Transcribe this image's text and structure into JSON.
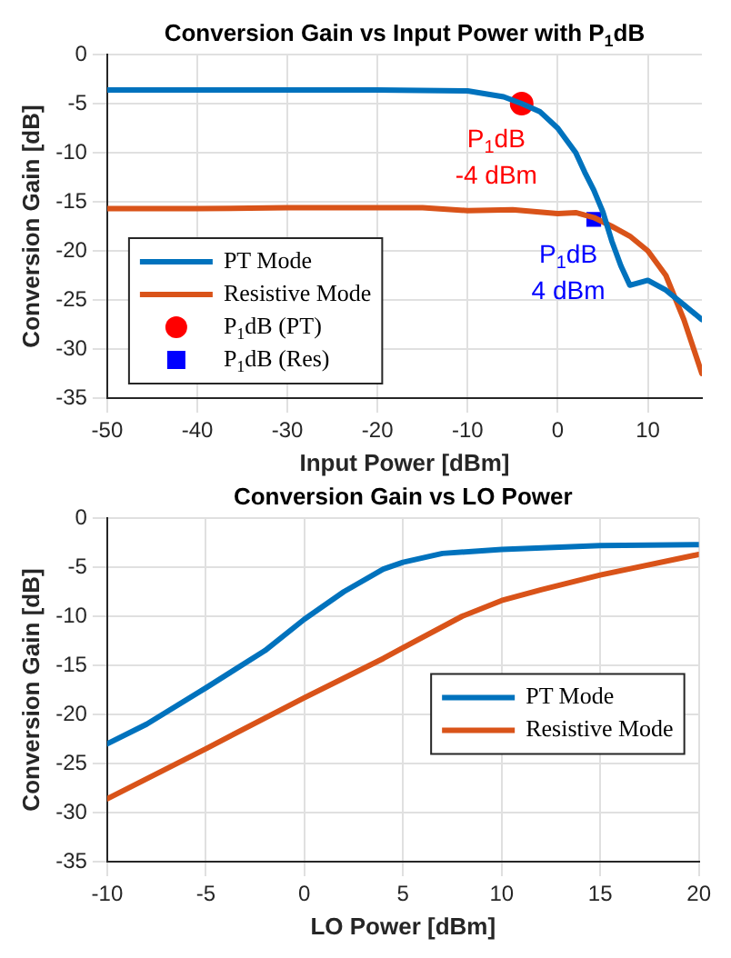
{
  "chart_data": [
    {
      "type": "line",
      "title": "Conversion Gain vs Input Power with P$_{1}$dB",
      "xlabel": "Input Power [dBm]",
      "ylabel": "Conversion Gain [dB]",
      "xlim": [
        -50,
        16
      ],
      "xticks": [
        -50,
        -40,
        -30,
        -20,
        -10,
        0,
        10
      ],
      "ylim": [
        -35,
        0
      ],
      "yticks": [
        -35,
        -30,
        -25,
        -20,
        -15,
        -10,
        -5,
        0
      ],
      "grid": true,
      "legend": "bottom left",
      "series": [
        {
          "name": "PT Mode",
          "color": "#0072bd",
          "x": [
            -50,
            -40,
            -30,
            -20,
            -10,
            -6,
            -4,
            -2,
            0,
            2,
            3,
            4,
            5,
            6,
            7,
            8,
            10,
            12,
            14,
            16
          ],
          "values": [
            -3.6,
            -3.6,
            -3.6,
            -3.6,
            -3.7,
            -4.3,
            -5.0,
            -5.8,
            -7.5,
            -10,
            -12,
            -13.8,
            -16,
            -19,
            -21.5,
            -23.5,
            -23,
            -24,
            -25.5,
            -27
          ]
        },
        {
          "name": "Resistive Mode",
          "color": "#d95319",
          "x": [
            -50,
            -40,
            -30,
            -20,
            -15,
            -10,
            -5,
            0,
            2,
            4,
            6,
            8,
            10,
            12,
            14,
            16
          ],
          "values": [
            -15.7,
            -15.7,
            -15.6,
            -15.6,
            -15.6,
            -15.9,
            -15.8,
            -16.2,
            -16.1,
            -16.6,
            -17.5,
            -18.5,
            -20,
            -22.5,
            -27,
            -32.5
          ]
        },
        {
          "name": "P$_{1}$dB (PT)",
          "type": "scatter",
          "marker": "circle",
          "color": "#ff0000",
          "x": [
            -4
          ],
          "values": [
            -5.0
          ]
        },
        {
          "name": "P$_{1}$dB (Res)",
          "type": "scatter",
          "marker": "square",
          "color": "#0000ff",
          "x": [
            4
          ],
          "values": [
            -16.8
          ]
        }
      ],
      "annotations": [
        "P$_{1}$dB",
        "-4 dBm",
        "P$_{1}$dB",
        "4 dBm"
      ]
    },
    {
      "type": "line",
      "title": "Conversion Gain vs LO Power",
      "xlabel": "LO Power [dBm]",
      "ylabel": "Conversion Gain [dB]",
      "xlim": [
        -10,
        20
      ],
      "xticks": [
        -10,
        -5,
        0,
        5,
        10,
        15,
        20
      ],
      "ylim": [
        -35,
        0
      ],
      "yticks": [
        -35,
        -30,
        -25,
        -20,
        -15,
        -10,
        -5,
        0
      ],
      "grid": true,
      "legend": "right",
      "series": [
        {
          "name": "PT Mode",
          "color": "#0072bd",
          "x": [
            -10,
            -8,
            -5,
            -2,
            0,
            2,
            4,
            5,
            7,
            10,
            15,
            20
          ],
          "values": [
            -23,
            -21,
            -17.3,
            -13.5,
            -10.3,
            -7.5,
            -5.2,
            -4.5,
            -3.6,
            -3.2,
            -2.8,
            -2.7
          ]
        },
        {
          "name": "Resistive Mode",
          "color": "#d95319",
          "x": [
            -10,
            -5,
            0,
            4,
            5,
            8,
            10,
            12,
            15,
            20
          ],
          "values": [
            -28.6,
            -23.5,
            -18.3,
            -14.3,
            -13.2,
            -10,
            -8.4,
            -7.3,
            -5.8,
            -3.7
          ]
        }
      ]
    }
  ]
}
